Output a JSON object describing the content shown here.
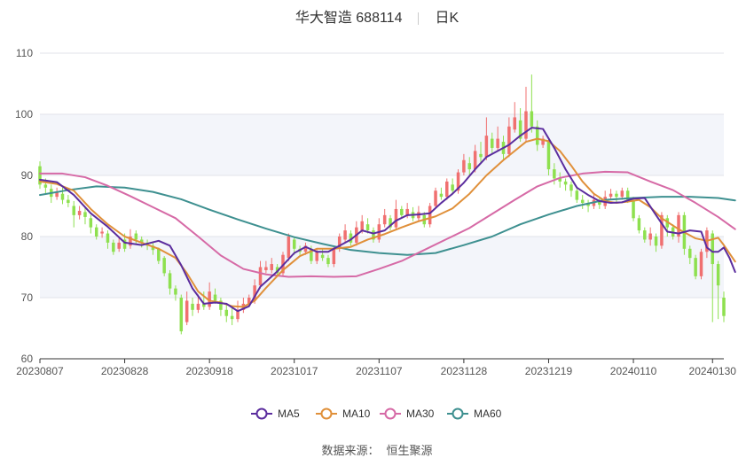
{
  "header": {
    "title": "华大智造 688114",
    "period": "日K"
  },
  "source": {
    "label": "数据来源：",
    "name": "恒生聚源"
  },
  "chart_data": {
    "type": "candlestick",
    "ylim": [
      60,
      110
    ],
    "yticks": [
      60,
      70,
      80,
      90,
      100,
      110
    ],
    "xtick_labels": [
      "20230807",
      "20230828",
      "20230918",
      "20231017",
      "20231107",
      "20231128",
      "20231219",
      "20240110",
      "20240130"
    ],
    "xtick_index": [
      0,
      15,
      30,
      45,
      60,
      75,
      90,
      105,
      119
    ],
    "legend": [
      "MA5",
      "MA10",
      "MA30",
      "MA60"
    ],
    "colors": {
      "up": "#f07070",
      "down": "#8ee04f",
      "MA5": "#5b2d9e",
      "MA10": "#e0903a",
      "MA30": "#d66aa6",
      "MA60": "#3e9090"
    },
    "candles": [
      [
        91.5,
        88.5,
        92.3,
        87.8
      ],
      [
        88.5,
        88.0,
        89.5,
        87.0
      ],
      [
        87.8,
        86.5,
        88.5,
        85.5
      ],
      [
        86.5,
        87.2,
        88.0,
        86.0
      ],
      [
        87.0,
        86.0,
        88.0,
        85.3
      ],
      [
        86.0,
        85.5,
        86.8,
        84.8
      ],
      [
        85.0,
        83.5,
        85.8,
        81.5
      ],
      [
        83.5,
        84.2,
        85.0,
        82.8
      ],
      [
        84.0,
        83.2,
        84.8,
        82.0
      ],
      [
        83.0,
        81.5,
        83.5,
        80.5
      ],
      [
        81.5,
        80.0,
        82.0,
        79.5
      ],
      [
        80.5,
        80.8,
        81.5,
        79.8
      ],
      [
        80.5,
        79.0,
        81.0,
        78.0
      ],
      [
        79.0,
        77.5,
        79.5,
        77.0
      ],
      [
        78.0,
        79.0,
        80.0,
        77.5
      ],
      [
        79.5,
        78.0,
        80.5,
        77.5
      ],
      [
        78.5,
        80.0,
        81.2,
        78.0
      ],
      [
        80.5,
        79.5,
        81.0,
        78.8
      ],
      [
        79.5,
        79.0,
        80.0,
        78.2
      ],
      [
        79.0,
        78.5,
        79.5,
        77.8
      ],
      [
        78.5,
        77.8,
        79.0,
        77.0
      ],
      [
        78.0,
        76.0,
        78.2,
        75.5
      ],
      [
        76.5,
        74.0,
        76.8,
        73.5
      ],
      [
        74.0,
        71.5,
        74.5,
        70.5
      ],
      [
        71.5,
        70.5,
        72.0,
        69.5
      ],
      [
        70.0,
        64.5,
        70.5,
        64.0
      ],
      [
        66.0,
        69.5,
        71.0,
        65.5
      ],
      [
        69.0,
        68.0,
        70.0,
        67.0
      ],
      [
        68.0,
        69.0,
        70.5,
        67.5
      ],
      [
        69.0,
        68.5,
        71.0,
        68.0
      ],
      [
        68.5,
        71.0,
        72.5,
        68.0
      ],
      [
        70.5,
        69.5,
        71.5,
        69.0
      ],
      [
        69.5,
        68.0,
        70.0,
        67.0
      ],
      [
        68.0,
        67.0,
        69.0,
        66.0
      ],
      [
        67.0,
        66.5,
        68.5,
        65.5
      ],
      [
        66.5,
        68.0,
        69.5,
        66.0
      ],
      [
        68.0,
        69.0,
        70.0,
        67.5
      ],
      [
        69.0,
        70.0,
        70.5,
        68.5
      ],
      [
        69.5,
        72.0,
        73.0,
        69.0
      ],
      [
        72.0,
        75.0,
        76.0,
        71.5
      ],
      [
        74.5,
        75.0,
        76.0,
        74.0
      ],
      [
        74.5,
        75.5,
        76.5,
        74.0
      ],
      [
        75.0,
        74.0,
        75.5,
        73.5
      ],
      [
        74.0,
        77.0,
        77.5,
        73.5
      ],
      [
        76.5,
        80.0,
        80.5,
        76.0
      ],
      [
        79.5,
        78.0,
        80.0,
        77.0
      ],
      [
        78.0,
        77.5,
        78.5,
        77.0
      ],
      [
        77.5,
        78.5,
        79.0,
        77.0
      ],
      [
        78.0,
        76.0,
        78.5,
        75.5
      ],
      [
        76.0,
        77.5,
        78.0,
        75.5
      ],
      [
        77.0,
        76.5,
        78.0,
        76.0
      ],
      [
        76.5,
        75.5,
        77.0,
        75.0
      ],
      [
        75.5,
        78.0,
        78.5,
        75.0
      ],
      [
        78.0,
        80.0,
        80.5,
        77.5
      ],
      [
        79.5,
        81.0,
        82.0,
        79.0
      ],
      [
        80.5,
        79.0,
        81.0,
        78.5
      ],
      [
        79.0,
        81.5,
        82.5,
        78.5
      ],
      [
        81.0,
        82.5,
        83.5,
        80.5
      ],
      [
        82.0,
        81.0,
        83.0,
        80.5
      ],
      [
        81.0,
        79.5,
        81.5,
        79.0
      ],
      [
        79.5,
        82.0,
        83.0,
        79.0
      ],
      [
        82.0,
        83.5,
        84.5,
        81.5
      ],
      [
        83.0,
        81.5,
        83.5,
        81.0
      ],
      [
        81.5,
        84.5,
        86.0,
        81.0
      ],
      [
        84.5,
        83.5,
        85.0,
        83.0
      ],
      [
        83.5,
        84.5,
        85.5,
        83.0
      ],
      [
        84.0,
        83.0,
        84.8,
        82.5
      ],
      [
        83.0,
        84.0,
        85.0,
        82.5
      ],
      [
        83.5,
        82.0,
        84.0,
        81.5
      ],
      [
        82.0,
        85.0,
        85.5,
        81.5
      ],
      [
        85.0,
        87.5,
        88.0,
        84.5
      ],
      [
        87.0,
        86.5,
        88.0,
        86.0
      ],
      [
        86.5,
        89.0,
        89.5,
        86.0
      ],
      [
        88.5,
        87.5,
        89.5,
        87.0
      ],
      [
        87.5,
        90.5,
        91.0,
        87.0
      ],
      [
        90.5,
        92.5,
        93.5,
        90.0
      ],
      [
        92.0,
        91.0,
        93.0,
        90.0
      ],
      [
        91.0,
        94.0,
        95.0,
        90.5
      ],
      [
        93.5,
        93.0,
        95.5,
        92.0
      ],
      [
        93.0,
        96.5,
        99.5,
        92.5
      ],
      [
        96.0,
        94.5,
        97.0,
        93.5
      ],
      [
        94.5,
        96.0,
        98.0,
        94.0
      ],
      [
        95.5,
        93.5,
        96.5,
        92.5
      ],
      [
        93.5,
        98.0,
        99.5,
        93.0
      ],
      [
        97.5,
        99.5,
        102.0,
        97.0
      ],
      [
        99.0,
        96.0,
        101.0,
        95.5
      ],
      [
        96.0,
        100.5,
        104.5,
        95.5
      ],
      [
        100.5,
        98.0,
        106.5,
        97.0
      ],
      [
        98.0,
        95.0,
        99.0,
        94.0
      ],
      [
        95.0,
        96.0,
        96.5,
        94.5
      ],
      [
        95.5,
        91.0,
        96.0,
        90.0
      ],
      [
        91.0,
        89.5,
        92.0,
        88.5
      ],
      [
        89.5,
        89.0,
        90.5,
        88.0
      ],
      [
        89.0,
        88.5,
        89.5,
        87.5
      ],
      [
        88.5,
        87.5,
        89.0,
        86.5
      ],
      [
        87.5,
        86.0,
        88.0,
        85.5
      ],
      [
        86.0,
        85.5,
        86.8,
        84.5
      ],
      [
        85.5,
        85.0,
        86.0,
        84.0
      ],
      [
        85.0,
        86.0,
        87.0,
        84.5
      ],
      [
        85.8,
        85.2,
        86.5,
        84.5
      ],
      [
        85.0,
        86.5,
        87.5,
        84.5
      ],
      [
        86.5,
        87.0,
        87.8,
        86.0
      ],
      [
        87.0,
        86.5,
        87.5,
        85.5
      ],
      [
        86.5,
        87.5,
        88.0,
        86.0
      ],
      [
        87.5,
        86.0,
        88.0,
        85.5
      ],
      [
        86.0,
        83.0,
        86.5,
        82.5
      ],
      [
        83.0,
        81.0,
        83.5,
        80.5
      ],
      [
        81.0,
        79.5,
        81.5,
        79.0
      ],
      [
        79.5,
        80.5,
        81.5,
        78.5
      ],
      [
        80.0,
        78.5,
        80.5,
        77.5
      ],
      [
        78.5,
        83.5,
        84.0,
        78.0
      ],
      [
        83.0,
        81.5,
        83.5,
        80.0
      ],
      [
        81.5,
        80.0,
        82.0,
        79.5
      ],
      [
        80.0,
        83.5,
        84.0,
        79.0
      ],
      [
        83.5,
        78.0,
        84.0,
        77.0
      ],
      [
        78.0,
        76.5,
        78.5,
        75.5
      ],
      [
        76.5,
        73.5,
        77.0,
        73.0
      ],
      [
        73.5,
        77.5,
        78.0,
        73.0
      ],
      [
        77.5,
        81.0,
        81.5,
        76.5
      ],
      [
        80.5,
        75.5,
        81.0,
        66.0
      ],
      [
        75.5,
        72.0,
        76.0,
        66.5
      ],
      [
        70.0,
        67.0,
        71.0,
        66.0
      ]
    ],
    "ma5": [
      [
        0,
        89.3
      ],
      [
        3,
        88.9
      ],
      [
        6,
        86.8
      ],
      [
        9,
        83.8
      ],
      [
        12,
        81.6
      ],
      [
        15,
        79.0
      ],
      [
        18,
        78.6
      ],
      [
        21,
        79.3
      ],
      [
        23,
        78.5
      ],
      [
        25,
        75.3
      ],
      [
        27,
        71.5
      ],
      [
        29,
        69.0
      ],
      [
        31,
        69.2
      ],
      [
        33,
        69.0
      ],
      [
        35,
        67.8
      ],
      [
        37,
        68.6
      ],
      [
        39,
        71.8
      ],
      [
        42,
        74.3
      ],
      [
        45,
        77.3
      ],
      [
        47,
        78.3
      ],
      [
        49,
        77.5
      ],
      [
        51,
        77.5
      ],
      [
        53,
        78.5
      ],
      [
        55,
        79.5
      ],
      [
        57,
        81.0
      ],
      [
        59,
        80.5
      ],
      [
        61,
        81.0
      ],
      [
        63,
        82.6
      ],
      [
        65,
        83.5
      ],
      [
        67,
        83.6
      ],
      [
        69,
        83.8
      ],
      [
        71,
        85.5
      ],
      [
        73,
        87.0
      ],
      [
        75,
        88.8
      ],
      [
        77,
        91.0
      ],
      [
        79,
        93.0
      ],
      [
        81,
        94.0
      ],
      [
        83,
        95.0
      ],
      [
        85,
        96.5
      ],
      [
        87,
        97.8
      ],
      [
        89,
        97.6
      ],
      [
        91,
        94.5
      ],
      [
        93,
        91.0
      ],
      [
        95,
        88.0
      ],
      [
        97,
        86.8
      ],
      [
        99,
        85.8
      ],
      [
        101,
        85.5
      ],
      [
        103,
        85.6
      ],
      [
        105,
        86.2
      ],
      [
        107,
        86.3
      ],
      [
        109,
        83.5
      ],
      [
        111,
        80.8
      ],
      [
        113,
        80.5
      ],
      [
        115,
        81.0
      ],
      [
        117,
        80.8
      ],
      [
        118,
        78.2
      ],
      [
        119,
        77.5
      ],
      [
        120,
        77.5
      ],
      [
        121,
        78.2
      ],
      [
        122,
        76.5
      ],
      [
        123,
        74.2
      ]
    ],
    "ma10": [
      [
        0,
        89.0
      ],
      [
        3,
        88.6
      ],
      [
        6,
        87.5
      ],
      [
        9,
        84.5
      ],
      [
        12,
        82.0
      ],
      [
        15,
        80.0
      ],
      [
        18,
        79.0
      ],
      [
        21,
        78.0
      ],
      [
        24,
        76.5
      ],
      [
        26,
        74.0
      ],
      [
        28,
        71.0
      ],
      [
        30,
        69.5
      ],
      [
        32,
        69.2
      ],
      [
        34,
        68.6
      ],
      [
        36,
        68.5
      ],
      [
        38,
        69.5
      ],
      [
        40,
        71.6
      ],
      [
        43,
        74.5
      ],
      [
        46,
        76.8
      ],
      [
        49,
        78.0
      ],
      [
        52,
        78.0
      ],
      [
        55,
        78.3
      ],
      [
        58,
        79.5
      ],
      [
        61,
        80.4
      ],
      [
        64,
        81.5
      ],
      [
        67,
        82.5
      ],
      [
        70,
        83.3
      ],
      [
        73,
        84.6
      ],
      [
        76,
        87.0
      ],
      [
        79,
        90.0
      ],
      [
        82,
        92.5
      ],
      [
        84,
        94.0
      ],
      [
        86,
        95.5
      ],
      [
        88,
        96.0
      ],
      [
        90,
        95.6
      ],
      [
        92,
        94.0
      ],
      [
        94,
        91.6
      ],
      [
        96,
        89.0
      ],
      [
        98,
        87.0
      ],
      [
        100,
        85.8
      ],
      [
        102,
        85.5
      ],
      [
        104,
        85.7
      ],
      [
        106,
        86.0
      ],
      [
        108,
        84.8
      ],
      [
        110,
        83.0
      ],
      [
        113,
        81.2
      ],
      [
        116,
        79.7
      ],
      [
        118,
        79.3
      ],
      [
        120,
        79.8
      ],
      [
        121,
        78.6
      ],
      [
        123,
        75.9
      ]
    ],
    "ma30": [
      [
        0,
        90.3
      ],
      [
        4,
        90.3
      ],
      [
        8,
        89.7
      ],
      [
        12,
        88.3
      ],
      [
        16,
        86.6
      ],
      [
        20,
        84.8
      ],
      [
        24,
        83.0
      ],
      [
        28,
        80.0
      ],
      [
        32,
        76.9
      ],
      [
        36,
        74.7
      ],
      [
        40,
        73.8
      ],
      [
        44,
        73.4
      ],
      [
        48,
        73.5
      ],
      [
        52,
        73.4
      ],
      [
        56,
        73.5
      ],
      [
        60,
        74.7
      ],
      [
        64,
        76.0
      ],
      [
        68,
        77.8
      ],
      [
        72,
        79.6
      ],
      [
        76,
        81.4
      ],
      [
        80,
        83.7
      ],
      [
        84,
        86.0
      ],
      [
        88,
        88.2
      ],
      [
        92,
        89.6
      ],
      [
        96,
        90.3
      ],
      [
        100,
        90.6
      ],
      [
        104,
        90.5
      ],
      [
        108,
        89.0
      ],
      [
        112,
        87.6
      ],
      [
        116,
        85.5
      ],
      [
        120,
        83.2
      ],
      [
        123,
        81.2
      ]
    ],
    "ma60": [
      [
        0,
        86.8
      ],
      [
        5,
        87.6
      ],
      [
        10,
        88.2
      ],
      [
        15,
        88.0
      ],
      [
        20,
        87.3
      ],
      [
        25,
        86.1
      ],
      [
        30,
        84.4
      ],
      [
        35,
        82.8
      ],
      [
        40,
        81.3
      ],
      [
        45,
        79.9
      ],
      [
        50,
        78.8
      ],
      [
        55,
        77.8
      ],
      [
        60,
        77.3
      ],
      [
        65,
        77.0
      ],
      [
        70,
        77.3
      ],
      [
        75,
        78.6
      ],
      [
        80,
        80.0
      ],
      [
        85,
        82.0
      ],
      [
        90,
        83.6
      ],
      [
        95,
        85.0
      ],
      [
        100,
        86.0
      ],
      [
        105,
        86.3
      ],
      [
        110,
        86.5
      ],
      [
        115,
        86.5
      ],
      [
        120,
        86.3
      ],
      [
        123,
        85.9
      ]
    ]
  }
}
